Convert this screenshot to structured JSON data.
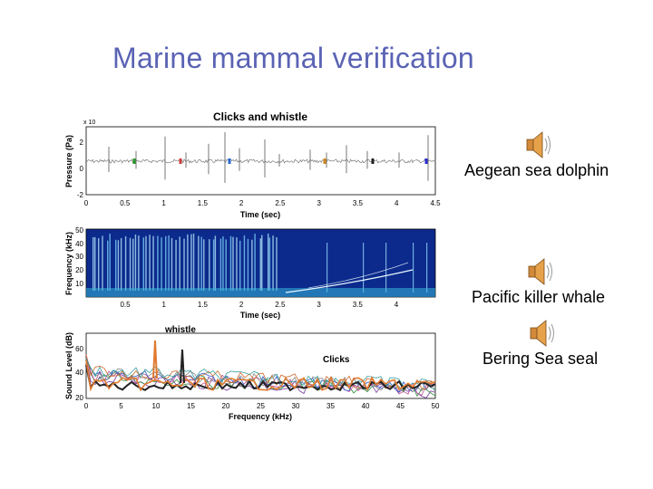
{
  "slide": {
    "title": "Marine mammal verification"
  },
  "panels": {
    "waveform": {
      "title": "Clicks and whistle",
      "ylabel": "Pressure (Pa)",
      "xlabel": "Time (sec)",
      "exponent": "x 10",
      "yticks": [
        "2",
        "0",
        "-2"
      ],
      "xticks": [
        "0",
        "0.5",
        "1",
        "1.5",
        "2",
        "2.5",
        "3",
        "3.5",
        "4",
        "4.5"
      ]
    },
    "spectrogram": {
      "ylabel": "Frequency (kHz)",
      "xlabel": "Time (sec)",
      "yticks": [
        "50",
        "40",
        "30",
        "20",
        "10"
      ],
      "xticks": [
        "0.5",
        "1",
        "1.5",
        "2",
        "2.5",
        "3",
        "3.5",
        "4"
      ]
    },
    "spectrum": {
      "ylabel": "Sound Level (dB)",
      "xlabel": "Frequency (kHz)",
      "yticks": [
        "60",
        "40",
        "20"
      ],
      "xticks": [
        "0",
        "5",
        "10",
        "15",
        "20",
        "25",
        "30",
        "35",
        "40",
        "45",
        "50"
      ],
      "annotation_whistle": "whistle",
      "annotation_clicks": "Clicks"
    }
  },
  "audio_clips": [
    {
      "label": "Aegean sea dolphin",
      "icon": "speaker-icon"
    },
    {
      "label": "Pacific killer whale",
      "icon": "speaker-icon"
    },
    {
      "label": "Bering Sea seal",
      "icon": "speaker-icon"
    }
  ]
}
